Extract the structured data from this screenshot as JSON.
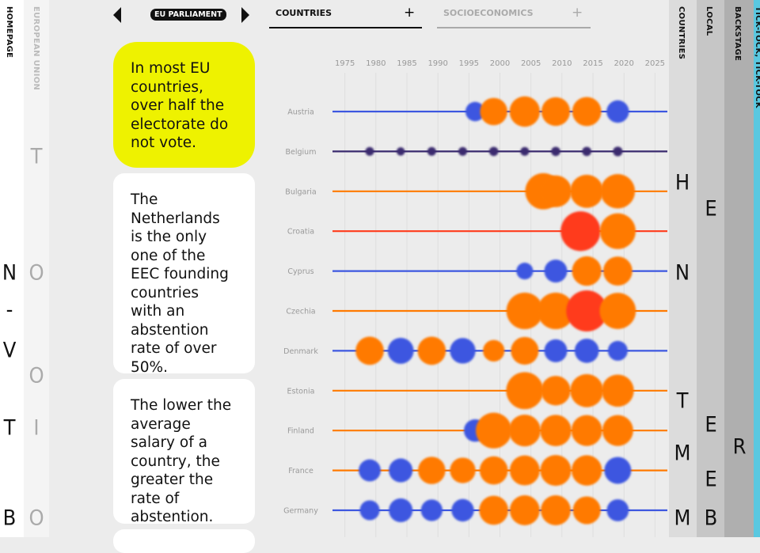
{
  "nav": {
    "left": [
      "HOMEPAGE",
      "EUROPEAN UNION"
    ],
    "right": [
      "COUNTRIES",
      "LOCAL",
      "BACKSTAGE",
      "TICK-TOCK, TICK-TOCK"
    ]
  },
  "letters": {
    "homepage": [
      "N",
      "-",
      "V",
      "T",
      "B"
    ],
    "european_union": [
      "T",
      "O",
      "O",
      "I",
      "O"
    ],
    "countries": [
      "H",
      "N",
      "T",
      "M",
      "M"
    ],
    "local": [
      "E",
      "E",
      "E",
      "B"
    ],
    "backstage": [
      "R"
    ]
  },
  "header": {
    "section": "EU PARLIAMENT",
    "tabs": [
      {
        "label": "COUNTRIES",
        "icon": "+"
      },
      {
        "label": "SOCIOECONOMICS",
        "icon": "+"
      }
    ]
  },
  "cards": [
    "In most EU countries, over half the electorate do not vote.",
    "The Netherlands is the only one of the EEC founding countries with an abstention rate of over 50%.",
    "The lower the average salary of a country, the greater the rate of abstention."
  ],
  "chart_data": {
    "type": "dot",
    "xlim": [
      1973,
      2027
    ],
    "xticks": [
      1975,
      1980,
      1985,
      1990,
      1995,
      2000,
      2005,
      2010,
      2015,
      2020,
      2025
    ],
    "categories": [
      "Austria",
      "Belgium",
      "Bulgaria",
      "Croatia",
      "Cyprus",
      "Czechia",
      "Denmark",
      "Estonia",
      "Finland",
      "France",
      "Germany"
    ],
    "series": [
      {
        "name": "Austria",
        "color": "#3d57e0",
        "x": [
          1996,
          1999,
          2004,
          2009,
          2014,
          2019
        ],
        "values": [
          33,
          51,
          58,
          54,
          55,
          40
        ],
        "colors": [
          "#3d57e0",
          "#ff7a00",
          "#ff7a00",
          "#ff7a00",
          "#ff7a00",
          "#3d57e0"
        ]
      },
      {
        "name": "Belgium",
        "color": "#3a2a6e",
        "x": [
          1979,
          1984,
          1989,
          1994,
          1999,
          2004,
          2009,
          2014,
          2019
        ],
        "values": [
          9,
          8,
          9,
          9,
          10,
          9,
          10,
          10,
          11
        ],
        "colors": [
          "#3a2a6e",
          "#3a2a6e",
          "#3a2a6e",
          "#3a2a6e",
          "#3a2a6e",
          "#3a2a6e",
          "#3a2a6e",
          "#3a2a6e",
          "#3a2a6e"
        ]
      },
      {
        "name": "Bulgaria",
        "color": "#ff7a00",
        "x": [
          2007,
          2009,
          2014,
          2019
        ],
        "values": [
          71,
          61,
          64,
          67
        ],
        "colors": [
          "#ff7a00",
          "#ff7a00",
          "#ff7a00",
          "#ff7a00"
        ]
      },
      {
        "name": "Croatia",
        "color": "#ff3a1a",
        "x": [
          2013,
          2019
        ],
        "values": [
          79,
          70
        ],
        "colors": [
          "#ff3a1a",
          "#ff7a00"
        ]
      },
      {
        "name": "Cyprus",
        "color": "#3d57e0",
        "x": [
          2004,
          2009,
          2014,
          2019
        ],
        "values": [
          27,
          41,
          56,
          55
        ],
        "colors": [
          "#3d57e0",
          "#3d57e0",
          "#ff7a00",
          "#ff7a00"
        ]
      },
      {
        "name": "Czechia",
        "color": "#ff7a00",
        "x": [
          2004,
          2009,
          2014,
          2019
        ],
        "values": [
          72,
          72,
          82,
          71
        ],
        "colors": [
          "#ff7a00",
          "#ff7a00",
          "#ff3a1a",
          "#ff7a00"
        ]
      },
      {
        "name": "Denmark",
        "color": "#3d57e0",
        "x": [
          1979,
          1984,
          1989,
          1994,
          1999,
          2004,
          2009,
          2014,
          2019
        ],
        "values": [
          53,
          48,
          53,
          47,
          38,
          52,
          41,
          44,
          34
        ],
        "colors": [
          "#ff7a00",
          "#3d57e0",
          "#ff7a00",
          "#3d57e0",
          "#ff7a00",
          "#ff7a00",
          "#3d57e0",
          "#3d57e0",
          "#3d57e0"
        ]
      },
      {
        "name": "Estonia",
        "color": "#ff7a00",
        "x": [
          2004,
          2009,
          2014,
          2019
        ],
        "values": [
          73,
          56,
          64,
          62
        ],
        "colors": [
          "#ff7a00",
          "#ff7a00",
          "#ff7a00",
          "#ff7a00"
        ]
      },
      {
        "name": "Finland",
        "color": "#ff7a00",
        "x": [
          1996,
          1999,
          2004,
          2009,
          2014,
          2019
        ],
        "values": [
          40,
          70,
          61,
          60,
          59,
          59
        ],
        "colors": [
          "#3d57e0",
          "#ff7a00",
          "#ff7a00",
          "#ff7a00",
          "#ff7a00",
          "#ff7a00"
        ]
      },
      {
        "name": "France",
        "color": "#ff7a00",
        "x": [
          1979,
          1984,
          1989,
          1994,
          1999,
          2004,
          2009,
          2014,
          2019
        ],
        "values": [
          39,
          43,
          51,
          47,
          53,
          57,
          59,
          58,
          50
        ],
        "colors": [
          "#3d57e0",
          "#3d57e0",
          "#ff7a00",
          "#ff7a00",
          "#ff7a00",
          "#ff7a00",
          "#ff7a00",
          "#ff7a00",
          "#3d57e0"
        ]
      },
      {
        "name": "Germany",
        "color": "#3d57e0",
        "x": [
          1979,
          1984,
          1989,
          1994,
          1999,
          2004,
          2009,
          2014,
          2019
        ],
        "values": [
          34,
          43,
          38,
          40,
          55,
          57,
          57,
          52,
          39
        ],
        "colors": [
          "#3d57e0",
          "#3d57e0",
          "#3d57e0",
          "#3d57e0",
          "#ff7a00",
          "#ff7a00",
          "#ff7a00",
          "#ff7a00",
          "#3d57e0"
        ]
      }
    ]
  }
}
